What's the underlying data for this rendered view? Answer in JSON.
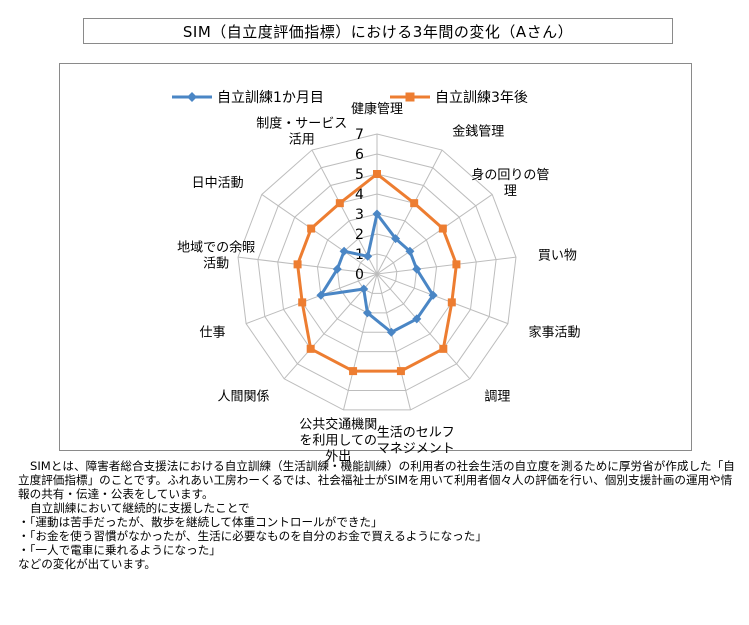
{
  "title": "SIM（自立度評価指標）における3年間の変化（Aさん）",
  "chart_data": {
    "type": "radar",
    "title": "SIM（自立度評価指標）における3年間の変化（Aさん）",
    "categories": [
      "健康管理",
      "金銭管理",
      "身の回りの管理",
      "買い物",
      "家事活動",
      "調理",
      "生活のセルフマネジメント",
      "公共交通機関を利用しての外出",
      "人間関係",
      "仕事",
      "地域での余暇活動",
      "日中活動",
      "制度・サービス活用"
    ],
    "category_label_lines": [
      [
        "健康管理"
      ],
      [
        "金銭管理"
      ],
      [
        "身の回りの管",
        "理"
      ],
      [
        "買い物"
      ],
      [
        "家事活動"
      ],
      [
        "調理"
      ],
      [
        "生活のセルフ",
        "マネジメント"
      ],
      [
        "公共交通機関",
        "を利用しての",
        "外出"
      ],
      [
        "人間関係"
      ],
      [
        "仕事"
      ],
      [
        "地域での余暇",
        "活動"
      ],
      [
        "日中活動"
      ],
      [
        "制度・サービス",
        "活用"
      ]
    ],
    "ticks": [
      "0",
      "1",
      "2",
      "3",
      "4",
      "5",
      "6",
      "7"
    ],
    "rlim": [
      0,
      7
    ],
    "grid": true,
    "legend_position": "top",
    "series": [
      {
        "name": "自立訓練1か月目",
        "color": "#4a86c5",
        "marker": "diamond",
        "values": [
          3,
          2,
          2,
          2,
          3,
          3,
          3,
          2,
          1,
          3,
          2,
          2,
          1
        ]
      },
      {
        "name": "自立訓練3年後",
        "color": "#ed7d31",
        "marker": "square",
        "values": [
          5,
          4,
          4,
          4,
          4,
          5,
          5,
          5,
          5,
          4,
          4,
          4,
          4
        ]
      }
    ]
  },
  "description": {
    "paragraph1": "SIMとは、障害者総合支援法における自立訓練（生活訓練・機能訓練）の利用者の社会生活の自立度を測るために厚労省が作成した「自立度評価指標」のことです。ふれあい工房わーくるでは、社会福祉士がSIMを用いて利用者個々人の評価を行い、個別支援計画の運用や情報の共有・伝達・公表をしています。",
    "intro": "自立訓練において継続的に支援したことで",
    "bullets": [
      "・「運動は苦手だったが、散歩を継続して体重コントロールができた」",
      "・「お金を使う習慣がなかったが、生活に必要なものを自分のお金で買えるようになった」",
      "・「一人で電車に乗れるようになった」"
    ],
    "closing": "などの変化が出ています。"
  }
}
